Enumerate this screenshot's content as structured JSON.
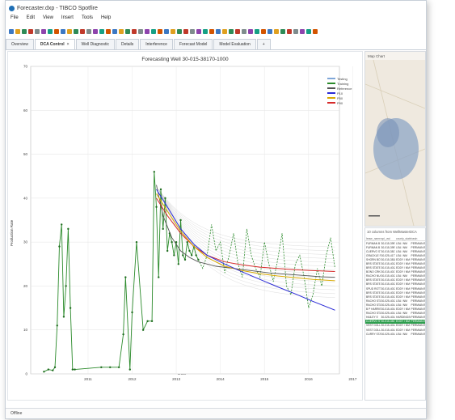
{
  "app": {
    "title": "Forecaster.dxp - TIBCO Spotfire",
    "menu": [
      "File",
      "Edit",
      "View",
      "Insert",
      "Tools",
      "Help"
    ],
    "tabs": [
      "Overview",
      "DCA Control",
      "Well Diagnostic",
      "Details",
      "Interference",
      "Forecast Model",
      "Model Evaluation"
    ],
    "active_tab": "DCA Control",
    "status": "Offline"
  },
  "chart": {
    "title": "Forecasting Well 30-015-38170-1000",
    "ylabel": "Production Rate",
    "xlabel": "Date",
    "legend": [
      "Testing",
      "Training",
      "Reference",
      "P10",
      "P50",
      "P90"
    ],
    "legend_colors": [
      "#7fa7d8",
      "#2a8a2a",
      "#555555",
      "#2b2bd6",
      "#d8a800",
      "#d62b2b"
    ]
  },
  "chart_data": {
    "type": "line",
    "yticks": [
      0,
      10,
      20,
      30,
      40,
      50,
      60,
      70
    ],
    "xticks": [
      "2011",
      "2012",
      "2013",
      "2014",
      "2015",
      "2016",
      "2017"
    ],
    "ylim": [
      0,
      70
    ],
    "xlim": [
      2010.2,
      2017.2
    ],
    "training": {
      "x": [
        2010.5,
        2010.6,
        2010.7,
        2010.75,
        2010.8,
        2010.85,
        2010.9,
        2010.95,
        2011.0,
        2011.05,
        2011.1,
        2011.15,
        2011.2,
        2011.8,
        2012.0,
        2012.2,
        2012.3,
        2012.35,
        2012.45,
        2012.5,
        2012.6,
        2012.75,
        2012.85,
        2012.95,
        2013.0,
        2013.05,
        2013.1,
        2013.15,
        2013.2,
        2013.25,
        2013.3,
        2013.35,
        2013.4,
        2013.45,
        2013.5,
        2013.55,
        2013.6,
        2013.65,
        2013.7,
        2013.75,
        2013.8,
        2013.85,
        2013.9,
        2013.95,
        2014.0
      ],
      "y": [
        0.5,
        1,
        0.8,
        1.5,
        11,
        29,
        34,
        13,
        20,
        33,
        15,
        1,
        1,
        1.5,
        1.5,
        1.5,
        9,
        22,
        1,
        14,
        30,
        10,
        12,
        12,
        46,
        38,
        22,
        42,
        33,
        40,
        28,
        32,
        30,
        27,
        30,
        25,
        35,
        27,
        26,
        30,
        28,
        27,
        29,
        27,
        26
      ]
    },
    "testing": {
      "x": [
        2014.0,
        2014.1,
        2014.2,
        2014.3,
        2014.4,
        2014.5,
        2014.6,
        2014.7,
        2014.8,
        2014.9,
        2015.0,
        2015.1,
        2015.2,
        2015.3,
        2015.4,
        2015.5,
        2015.6,
        2015.7,
        2015.8,
        2015.9,
        2016.0,
        2016.1,
        2016.2,
        2016.3,
        2016.4,
        2016.5,
        2016.6,
        2016.7,
        2016.8,
        2016.9,
        2017.0,
        2017.1
      ],
      "y": [
        26,
        24,
        27,
        34,
        28,
        30,
        23,
        27,
        32,
        25,
        22,
        33,
        27,
        24,
        22,
        30,
        25,
        21,
        26,
        32,
        20,
        18,
        25,
        27,
        22,
        15,
        18,
        24,
        20,
        27,
        31,
        24
      ]
    },
    "reference": {
      "x": [
        2013.05,
        2013.2,
        2013.4,
        2013.6,
        2013.8,
        2014.0,
        2014.4,
        2014.8,
        2015.2,
        2015.6,
        2016.0,
        2016.4,
        2016.8,
        2017.1
      ],
      "y": [
        43,
        36,
        31,
        28,
        26.5,
        25.5,
        24.5,
        24,
        23.5,
        23,
        22.7,
        22.4,
        22.1,
        22
      ]
    },
    "p10": {
      "x": [
        2013.05,
        2013.3,
        2013.6,
        2013.9,
        2014.2,
        2014.6,
        2015.0,
        2015.4,
        2015.8,
        2016.2,
        2016.6,
        2017.1
      ],
      "y": [
        40,
        36,
        32,
        29,
        27,
        25.5,
        24.8,
        24.3,
        24,
        23.7,
        23.5,
        23.3
      ]
    },
    "p50": {
      "x": [
        2013.05,
        2013.3,
        2013.6,
        2013.9,
        2014.2,
        2014.6,
        2015.0,
        2015.4,
        2015.8,
        2016.2,
        2016.6,
        2017.1
      ],
      "y": [
        41,
        37,
        32.5,
        29,
        26.5,
        24.5,
        23.5,
        22.8,
        22.3,
        21.9,
        21.5,
        21.2
      ]
    },
    "p90": {
      "x": [
        2013.05,
        2013.3,
        2013.6,
        2013.9,
        2014.2,
        2014.6,
        2015.0,
        2015.4,
        2015.8,
        2016.2,
        2016.6,
        2017.1
      ],
      "y": [
        42,
        38,
        33,
        29.5,
        27,
        25,
        23.2,
        21.5,
        19.8,
        18.2,
        16.5,
        14.5
      ]
    }
  },
  "map": {
    "title": "Map Chart"
  },
  "table": {
    "title": "10 columns from WellMasterDCA",
    "columns": [
      "lease_name",
      "api_uwi",
      "county_state",
      "basin"
    ],
    "rows": [
      [
        "FURMAN B",
        "30-015-39978",
        "LEA / NM",
        "PERMIAN BA"
      ],
      [
        "FURMAN B",
        "30-015-39979",
        "LEA / NM",
        "PERMIAN BA"
      ],
      [
        "CUERVO ST",
        "30-015-38170",
        "LEA / NM",
        "PERMIAN BA"
      ],
      [
        "GRACKLE F",
        "30-025-41770",
        "LEA / NM",
        "PERMIAN BA"
      ],
      [
        "SHORN BOT",
        "30-015-38180",
        "EDDY / NM",
        "PERMIAN BA"
      ],
      [
        "BRS STATE",
        "30-015-40121",
        "EDDY / NM",
        "PERMIAN BA"
      ],
      [
        "BRS STATE",
        "30-015-40122",
        "EDDY / NM",
        "PERMIAN BA"
      ],
      [
        "BONO CRKD",
        "30-015-40177",
        "EDDY / NM",
        "PERMIAN BA"
      ],
      [
        "RACHO NUC",
        "30-015-40133",
        "LEA / NM",
        "PERMIAN BA"
      ],
      [
        "BRS STATE",
        "30-015-40134",
        "EDDY / NM",
        "PERMIAN BA"
      ],
      [
        "BRS STATE",
        "30-015-40135",
        "EDDY / NM",
        "PERMIAN BA"
      ],
      [
        "SPUD ROTTR",
        "30-015-40136",
        "EDDY / NM",
        "PERMIAN BA"
      ],
      [
        "BRS STATE",
        "30-015-40137",
        "EDDY / NM",
        "PERMIAN BA"
      ],
      [
        "BRS STATE",
        "30-015-40138",
        "EDDY / NM",
        "PERMIAN BA"
      ],
      [
        "RACHO STATE",
        "30-025-40139",
        "LEA / NM",
        "PERMIAN BA"
      ],
      [
        "RACHO STATE",
        "30-025-40140",
        "LEA / NM",
        "PERMIAN BA"
      ],
      [
        "B P HARRIS",
        "30-015-40141",
        "EDDY / NM",
        "PERMIAN BA"
      ],
      [
        "RACHO STATE",
        "30-025-40142",
        "LEA / NM",
        "PERMIAN BA"
      ],
      [
        "HAILEY E",
        "30-025-40143",
        "HARDING/NM",
        "PERMIAN BA"
      ],
      [
        "CUERVO ST",
        "30-015-38170",
        "EDDY / NM",
        "PERMIAN BA"
      ],
      [
        "VEST DOLLA",
        "30-015-40145",
        "EDDY / NM",
        "PERMIAN BA"
      ],
      [
        "VEST DOLLA",
        "30-015-40146",
        "EDDY / NM",
        "PERMIAN BA"
      ],
      [
        "CURRY STATE",
        "30-025-40147",
        "LEA / NM",
        "PERMIAN BA"
      ]
    ],
    "selected_row": 19
  }
}
